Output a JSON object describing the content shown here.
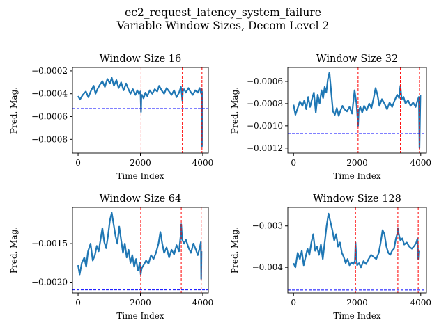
{
  "figure": {
    "title_line1": "ec2_request_latency_system_failure",
    "title_line2": "Variable Window Sizes, Decom Level 2"
  },
  "colors": {
    "series": "#1f77b4",
    "threshold": "#0000ff",
    "anomaly": "#ff0000"
  },
  "chart_data": [
    {
      "type": "line",
      "title": "Window Size 16",
      "xlabel": "Time Index",
      "ylabel": "Pred. Mag.",
      "xlim": [
        -180,
        4180
      ],
      "ylim": [
        -0.00092,
        -0.00017
      ],
      "xticks": [
        0,
        2000,
        4000
      ],
      "xtick_labels": [
        "0",
        "2000",
        "4000"
      ],
      "yticks": [
        -0.0008,
        -0.0006,
        -0.0004,
        -0.0002
      ],
      "ytick_labels": [
        "−0.0008",
        "−0.0006",
        "−0.0004",
        "−0.0002"
      ],
      "threshold": -0.00053,
      "anomaly_x": [
        2020,
        3345,
        3975
      ],
      "series": [
        {
          "x": [
            0,
            60,
            150,
            250,
            330,
            420,
            500,
            560,
            620,
            700,
            780,
            860,
            940,
            1020,
            1080,
            1150,
            1230,
            1300,
            1380,
            1460,
            1540,
            1600,
            1680,
            1760,
            1840,
            1900,
            1950,
            2000,
            2010,
            2020,
            2030,
            2050,
            2100,
            2160,
            2220,
            2300,
            2380,
            2460,
            2540,
            2600,
            2680,
            2760,
            2840,
            2920,
            3000,
            3080,
            3160,
            3240,
            3300,
            3330,
            3345,
            3360,
            3400,
            3460,
            3540,
            3600,
            3680,
            3760,
            3840,
            3900,
            3950,
            3970,
            3975,
            3980,
            3990
          ],
          "y": [
            -0.00042,
            -0.00045,
            -0.00041,
            -0.00038,
            -0.00043,
            -0.00037,
            -0.00033,
            -0.0004,
            -0.00036,
            -0.00032,
            -0.00029,
            -0.00034,
            -0.00027,
            -0.00031,
            -0.00026,
            -0.00033,
            -0.00028,
            -0.00035,
            -0.0003,
            -0.00037,
            -0.00031,
            -0.00035,
            -0.0004,
            -0.00036,
            -0.00041,
            -0.00037,
            -0.0004,
            -0.00038,
            -0.00046,
            -0.00056,
            -0.00043,
            -0.00041,
            -0.00044,
            -0.00039,
            -0.00042,
            -0.00037,
            -0.0004,
            -0.00036,
            -0.00038,
            -0.00033,
            -0.00037,
            -0.0004,
            -0.00035,
            -0.00038,
            -0.00041,
            -0.00037,
            -0.00043,
            -0.00039,
            -0.00034,
            -0.00041,
            -0.00046,
            -0.00038,
            -0.00036,
            -0.00039,
            -0.00035,
            -0.00038,
            -0.00041,
            -0.00037,
            -0.00039,
            -0.00035,
            -0.0004,
            -0.00036,
            -0.00086,
            -0.00045,
            -0.00038
          ]
        }
      ]
    },
    {
      "type": "line",
      "title": "Window Size 32",
      "xlabel": "Time Index",
      "ylabel": "Pred. Mag.",
      "xlim": [
        -180,
        4180
      ],
      "ylim": [
        -0.001245,
        -0.000475
      ],
      "xticks": [
        0,
        2000,
        4000
      ],
      "xtick_labels": [
        "0",
        "2000",
        "4000"
      ],
      "yticks": [
        -0.0012,
        -0.001,
        -0.0008,
        -0.0006
      ],
      "ytick_labels": [
        "−0.0012",
        "−0.0010",
        "−0.0008",
        "−0.0006"
      ],
      "threshold": -0.00107,
      "anomaly_x": [
        2030,
        3360,
        3960
      ],
      "series": [
        {
          "x": [
            0,
            60,
            130,
            200,
            280,
            340,
            400,
            460,
            520,
            580,
            640,
            700,
            760,
            820,
            880,
            930,
            980,
            1030,
            1080,
            1130,
            1180,
            1240,
            1300,
            1360,
            1420,
            1480,
            1540,
            1600,
            1680,
            1760,
            1840,
            1920,
            1980,
            2010,
            2030,
            2050,
            2100,
            2160,
            2220,
            2300,
            2380,
            2450,
            2520,
            2580,
            2640,
            2700,
            2780,
            2860,
            2940,
            3020,
            3100,
            3180,
            3260,
            3320,
            3360,
            3400,
            3460,
            3520,
            3600,
            3680,
            3760,
            3840,
            3900,
            3940,
            3960,
            3975,
            3990
          ],
          "y": [
            -0.00081,
            -0.0009,
            -0.00084,
            -0.00078,
            -0.00082,
            -0.00077,
            -0.00085,
            -0.00074,
            -0.00083,
            -0.00076,
            -0.0007,
            -0.00088,
            -0.00072,
            -0.0008,
            -0.00068,
            -0.00075,
            -0.00065,
            -0.0007,
            -0.00058,
            -0.00052,
            -0.00068,
            -0.00087,
            -0.0009,
            -0.00084,
            -0.00091,
            -0.00086,
            -0.00082,
            -0.00085,
            -0.00087,
            -0.00083,
            -0.00089,
            -0.00068,
            -0.0008,
            -0.00092,
            -0.001,
            -0.00086,
            -0.00083,
            -0.00088,
            -0.00082,
            -0.00086,
            -0.0008,
            -0.00084,
            -0.00075,
            -0.00066,
            -0.00072,
            -0.00082,
            -0.00076,
            -0.0008,
            -0.00085,
            -0.00079,
            -0.00083,
            -0.00077,
            -0.00072,
            -0.00075,
            -0.00064,
            -0.00076,
            -0.00074,
            -0.0008,
            -0.00077,
            -0.00082,
            -0.00079,
            -0.00083,
            -0.00077,
            -0.00074,
            -0.0012,
            -0.00095,
            -0.00072
          ]
        }
      ]
    },
    {
      "type": "line",
      "title": "Window Size 64",
      "xlabel": "Time Index",
      "ylabel": "Pred. Mag.",
      "xlim": [
        -180,
        4180
      ],
      "ylim": [
        -0.00214,
        -0.00103
      ],
      "xticks": [
        0,
        2000,
        4000
      ],
      "xtick_labels": [
        "0",
        "2000",
        "4000"
      ],
      "yticks": [
        -0.002,
        -0.0015
      ],
      "ytick_labels": [
        "−0.0020",
        "−0.0015"
      ],
      "threshold": -0.0021,
      "anomaly_x": [
        2010,
        3310,
        3950
      ],
      "series": [
        {
          "x": [
            0,
            50,
            120,
            200,
            260,
            320,
            400,
            470,
            540,
            600,
            660,
            720,
            780,
            840,
            900,
            960,
            1020,
            1080,
            1140,
            1200,
            1260,
            1320,
            1380,
            1440,
            1500,
            1560,
            1620,
            1680,
            1740,
            1800,
            1860,
            1920,
            1980,
            2010,
            2040,
            2100,
            2180,
            2260,
            2340,
            2420,
            2500,
            2580,
            2640,
            2700,
            2760,
            2840,
            2920,
            3000,
            3080,
            3160,
            3240,
            3290,
            3310,
            3340,
            3400,
            3460,
            3540,
            3620,
            3700,
            3780,
            3840,
            3900,
            3940,
            3950,
            3960
          ],
          "y": [
            -0.00178,
            -0.0019,
            -0.00175,
            -0.00168,
            -0.0018,
            -0.0016,
            -0.0015,
            -0.00172,
            -0.00165,
            -0.00153,
            -0.0016,
            -0.00145,
            -0.0013,
            -0.00148,
            -0.00156,
            -0.0014,
            -0.0012,
            -0.0011,
            -0.00125,
            -0.0014,
            -0.0015,
            -0.00128,
            -0.00145,
            -0.00162,
            -0.0015,
            -0.00168,
            -0.00158,
            -0.00175,
            -0.00165,
            -0.0018,
            -0.0017,
            -0.00185,
            -0.00175,
            -0.0019,
            -0.00182,
            -0.00178,
            -0.00172,
            -0.00176,
            -0.00165,
            -0.0017,
            -0.00162,
            -0.0015,
            -0.00135,
            -0.0015,
            -0.00162,
            -0.00155,
            -0.00168,
            -0.00158,
            -0.00164,
            -0.00152,
            -0.0016,
            -0.0014,
            -0.00125,
            -0.00145,
            -0.0015,
            -0.00145,
            -0.00155,
            -0.00162,
            -0.0015,
            -0.00158,
            -0.00165,
            -0.00156,
            -0.00148,
            -0.00196,
            -0.0016
          ]
        }
      ]
    },
    {
      "type": "line",
      "title": "Window Size 128",
      "xlabel": "Time Index",
      "ylabel": "Pred. Mag.",
      "xlim": [
        -180,
        4180
      ],
      "ylim": [
        -0.00462,
        -0.00255
      ],
      "xticks": [
        0,
        2000,
        4000
      ],
      "xtick_labels": [
        "0",
        "2000",
        "4000"
      ],
      "yticks": [
        -0.004,
        -0.003
      ],
      "ytick_labels": [
        "−0.004",
        "−0.003"
      ],
      "threshold": -0.00455,
      "anomaly_x": [
        1950,
        3280,
        3920
      ],
      "series": [
        {
          "x": [
            0,
            60,
            130,
            200,
            260,
            320,
            380,
            440,
            500,
            560,
            620,
            680,
            740,
            800,
            860,
            920,
            980,
            1040,
            1100,
            1160,
            1220,
            1280,
            1340,
            1400,
            1460,
            1520,
            1580,
            1640,
            1700,
            1760,
            1820,
            1880,
            1930,
            1950,
            1970,
            2000,
            2060,
            2120,
            2200,
            2280,
            2360,
            2440,
            2520,
            2600,
            2680,
            2740,
            2800,
            2860,
            2920,
            2980,
            3040,
            3100,
            3160,
            3220,
            3260,
            3280,
            3310,
            3360,
            3420,
            3480,
            3560,
            3640,
            3720,
            3800,
            3860,
            3900,
            3920,
            3935
          ],
          "y": [
            -0.0039,
            -0.004,
            -0.00365,
            -0.0038,
            -0.0036,
            -0.00395,
            -0.00375,
            -0.00355,
            -0.0037,
            -0.0034,
            -0.0032,
            -0.0036,
            -0.0035,
            -0.0037,
            -0.00345,
            -0.0038,
            -0.0034,
            -0.003,
            -0.0027,
            -0.0029,
            -0.0031,
            -0.00335,
            -0.0032,
            -0.0035,
            -0.0034,
            -0.00365,
            -0.00375,
            -0.0039,
            -0.0038,
            -0.00395,
            -0.00388,
            -0.00392,
            -0.00385,
            -0.0034,
            -0.0037,
            -0.00395,
            -0.0039,
            -0.004,
            -0.00385,
            -0.00392,
            -0.0038,
            -0.0037,
            -0.00375,
            -0.0038,
            -0.00365,
            -0.0034,
            -0.0031,
            -0.0032,
            -0.0035,
            -0.00365,
            -0.0037,
            -0.0036,
            -0.00355,
            -0.0033,
            -0.0032,
            -0.00305,
            -0.0032,
            -0.00335,
            -0.0033,
            -0.00345,
            -0.0034,
            -0.0035,
            -0.00355,
            -0.00348,
            -0.0034,
            -0.0033,
            -0.0038,
            -0.0036
          ]
        }
      ]
    }
  ]
}
